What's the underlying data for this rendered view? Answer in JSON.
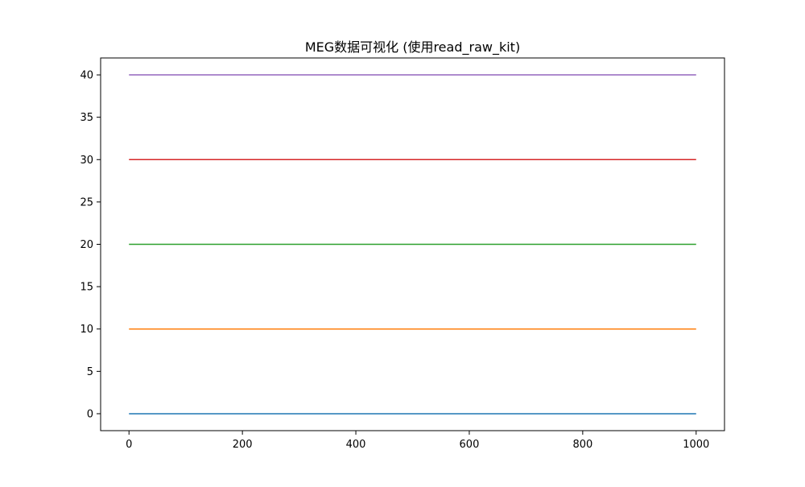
{
  "chart_data": {
    "type": "line",
    "title": "MEG数据可视化 (使用read_raw_kit)",
    "xlabel": "",
    "ylabel": "",
    "xlim": [
      -50,
      1050
    ],
    "ylim": [
      -2,
      42
    ],
    "xticks": [
      0,
      200,
      400,
      600,
      800,
      1000
    ],
    "yticks": [
      0,
      5,
      10,
      15,
      20,
      25,
      30,
      35,
      40
    ],
    "grid": false,
    "series": [
      {
        "x": [
          0,
          1000
        ],
        "values": [
          0,
          0
        ],
        "color": "#1f77b4"
      },
      {
        "x": [
          0,
          1000
        ],
        "values": [
          10,
          10
        ],
        "color": "#ff7f0e"
      },
      {
        "x": [
          0,
          1000
        ],
        "values": [
          20,
          20
        ],
        "color": "#2ca02c"
      },
      {
        "x": [
          0,
          1000
        ],
        "values": [
          30,
          30
        ],
        "color": "#d62728"
      },
      {
        "x": [
          0,
          1000
        ],
        "values": [
          40,
          40
        ],
        "color": "#9467bd"
      }
    ]
  }
}
